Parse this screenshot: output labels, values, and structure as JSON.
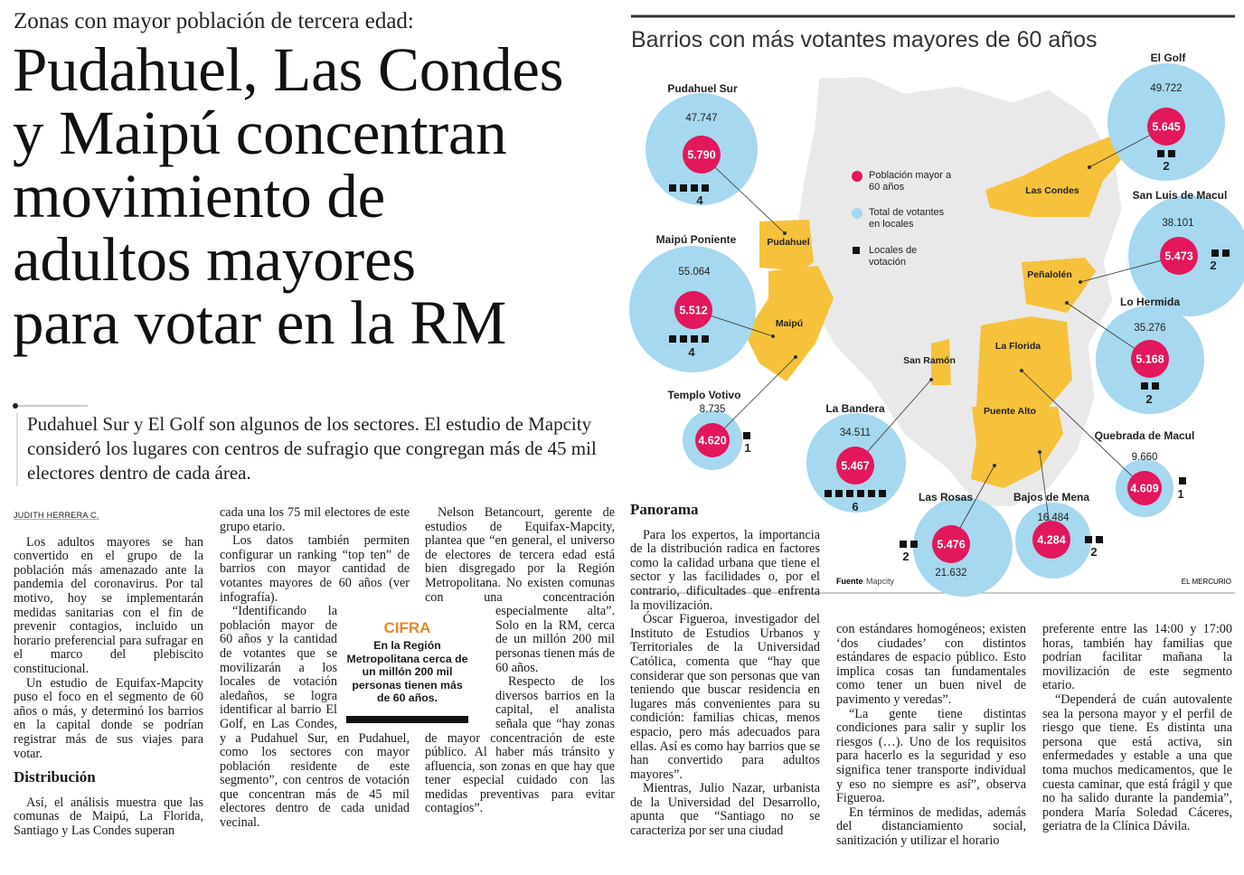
{
  "kicker": "Zonas con mayor población de tercera edad:",
  "headline": [
    "Pudahuel, Las Condes",
    "y Maipú concentran",
    "movimiento de",
    "adultos mayores",
    "para votar en la RM"
  ],
  "lead": "Pudahuel Sur y El Golf son algunos de los sectores. El estudio de Mapcity consideró los lugares con centros de sufragio que congregan más de 45 mil electores dentro de cada área.",
  "article": {
    "byline": "JUDITH HERRERA C.",
    "columns": [
      [
        "Los adultos mayores se han convertido en el grupo de la población más amenazado ante la pandemia del coronavirus. Por tal motivo, hoy se implementarán medidas sanitarias con el fin de prevenir contagios, incluido un horario preferencial para sufragar en el marco del plebiscito constitucional.",
        "Un estudio de Equifax-Mapcity puso el foco en el segmento de 60 años o más, y determinó los barrios en la capital donde se podrían registrar más de sus viajes para votar.",
        {
          "heading": "Distribución"
        },
        "Así, el análisis muestra que las comunas de Maipú, La Florida, Santiago y Las Condes superan"
      ],
      [
        "cada una los 75 mil electores de este grupo etario.",
        "Los datos también permiten configurar un ranking “top ten” de barrios con mayor cantidad de votantes mayores de 60 años (ver infografía).",
        "“Identificando la población mayor de 60 años y la cantidad de votantes que se movilizarán a los locales de votación aledaños, se logra identificar al barrio El Golf, en Las Condes, y a Pudahuel Sur, en Pudahuel, como los sectores con mayor población residente de este segmento”, con centros de votación que concentran más de 45 mil electores dentro de cada unidad vecinal."
      ],
      [
        "Nelson Betancourt, gerente de estudios de Equifax-Mapcity, plantea que “en general, el universo de electores de tercera edad está bien disgregado por la Región Metropolitana. No existen comunas con una concentración especialmente alta”. Solo en la RM, cerca de un millón 200 mil personas tienen más de 60 años.",
        "Respecto de los diversos barrios en la capital, el analista señala que “hay zonas de mayor concentración de este público. Al haber más tránsito y afluencia, son zonas en que hay que tener especial cuidado con las medidas preventivas para evitar contagios”."
      ],
      [
        {
          "heading": "Panorama"
        },
        "Para los expertos, la importancia de la distribución radica en factores como la calidad urbana que tiene el sector y las facilidades o, por el contrario, dificultades que enfrenta la movilización.",
        "Óscar Figueroa, investigador del Instituto de Estudios Urbanos y Territoriales de la Universidad Católica, comenta que “hay que considerar que son personas que van teniendo que buscar residencia en lugares más convenientes para su condición: familias chicas, menos espacio, pero más adecuados para ellas. Así es como hay barrios que se han convertido para adultos mayores”.",
        "Mientras, Julio Nazar, urbanista de la Universidad del Desarrollo, apunta que “Santiago no se caracteriza por ser una ciudad"
      ],
      [
        "con estándares homogéneos; existen ‘dos ciudades’ con distintos estándares de espacio público. Esto implica cosas tan fundamentales como tener un buen nivel de pavimento y veredas”.",
        "“La gente tiene distintas condiciones para salir y suplir los riesgos (…). Uno de los requisitos para hacerlo es la seguridad y eso significa tener transporte individual y eso no siempre es así”, observa Figueroa.",
        "En términos de medidas, además del distanciamiento social, sanitización y utilizar el horario"
      ],
      [
        "preferente entre las 14:00 y 17:00 horas, también hay familias que podrían facilitar mañana la movilización de este segmento etario.",
        "“Dependerá de cuán autovalente sea la persona mayor y el perfil de riesgo que tiene. Es distinta una persona que está activa, sin enfermedades y estable a una que toma muchos medicamentos, que le cuesta caminar, que está frágil y que no ha salido durante la pandemia”, pondera María Soledad Cáceres, geriatra de la Clínica Dávila."
      ]
    ]
  },
  "sidebar": {
    "label": "CIFRA",
    "text": "En la Región Metropolitana cerca de un millón 200 mil personas tienen más de 60 años."
  },
  "infographic": {
    "title": "Barrios con más votantes mayores de 60 años",
    "legend": [
      "Población mayor a 60 años",
      "Total de votantes en locales",
      "Locales de votación"
    ],
    "barrios": [
      {
        "name": "Pudahuel Sur",
        "total_voters": "47.747",
        "population_60_plus": "5.790",
        "polling_places": 4
      },
      {
        "name": "El Golf",
        "total_voters": "49.722",
        "population_60_plus": "5.645",
        "polling_places": 2
      },
      {
        "name": "Maipú Poniente",
        "total_voters": "55.064",
        "population_60_plus": "5.512",
        "polling_places": 4
      },
      {
        "name": "San Luis de Macul",
        "total_voters": "38.101",
        "population_60_plus": "5.473",
        "polling_places": 2
      },
      {
        "name": "Lo Hermida",
        "total_voters": "35.276",
        "population_60_plus": "5.168",
        "polling_places": 2
      },
      {
        "name": "Templo Votivo",
        "total_voters": "8.735",
        "population_60_plus": "4.620",
        "polling_places": 1
      },
      {
        "name": "La Bandera",
        "total_voters": "34.511",
        "population_60_plus": "5.467",
        "polling_places": 6
      },
      {
        "name": "Quebrada de Macul",
        "total_voters": "9.660",
        "population_60_plus": "4.609",
        "polling_places": 1
      },
      {
        "name": "Las Rosas",
        "total_voters": "21.632",
        "population_60_plus": "5.476",
        "polling_places": 2
      },
      {
        "name": "Bajos de Mena",
        "total_voters": "16.484",
        "population_60_plus": "4.284",
        "polling_places": 2
      }
    ],
    "map_labels": [
      "Pudahuel",
      "Maipú",
      "Las Condes",
      "Peñalolén",
      "La Florida",
      "San Ramón",
      "Puente Alto"
    ],
    "source_label": "Fuente",
    "source": "Mapcity",
    "credit": "EL MERCURIO"
  }
}
